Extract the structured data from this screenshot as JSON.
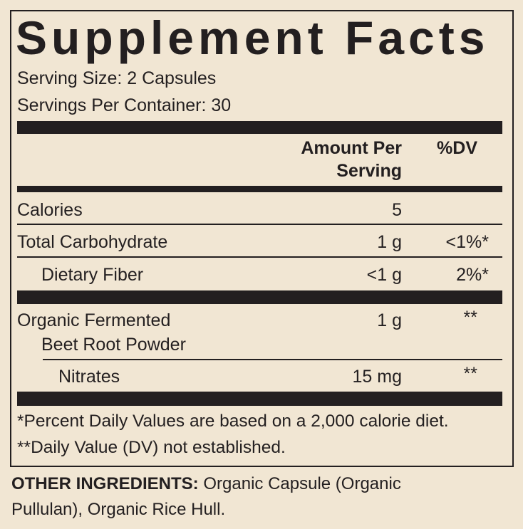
{
  "title": "Supplement Facts",
  "serving_size": "Serving Size: 2 Capsules",
  "servings_per_container": "Servings Per Container: 30",
  "header": {
    "amount": [
      "Amount Per",
      "Serving"
    ],
    "dv": "%DV"
  },
  "rows": [
    {
      "name": [
        "Calories"
      ],
      "amount": "5",
      "dv": null
    },
    {
      "name": [
        "Total Carbohydrate"
      ],
      "amount": "1 g",
      "dv": "<1%*"
    },
    {
      "name": [
        "Dietary Fiber"
      ],
      "amount": "<1 g",
      "dv": "2%*"
    },
    {
      "name": [
        "Organic Fermented",
        "Beet Root Powder"
      ],
      "amount": "1 g",
      "dv": "**"
    },
    {
      "name": [
        "Nitrates"
      ],
      "amount": "15 mg",
      "dv": "**"
    }
  ],
  "footnotes": [
    "*Percent Daily Values are based on a 2,000 calorie diet.",
    "**Daily Value (DV) not established."
  ],
  "other_ingredients": {
    "label": "OTHER INGREDIENTS:",
    "text": [
      "Organic Capsule (Organic",
      "Pullulan), Organic Rice Hull."
    ]
  }
}
